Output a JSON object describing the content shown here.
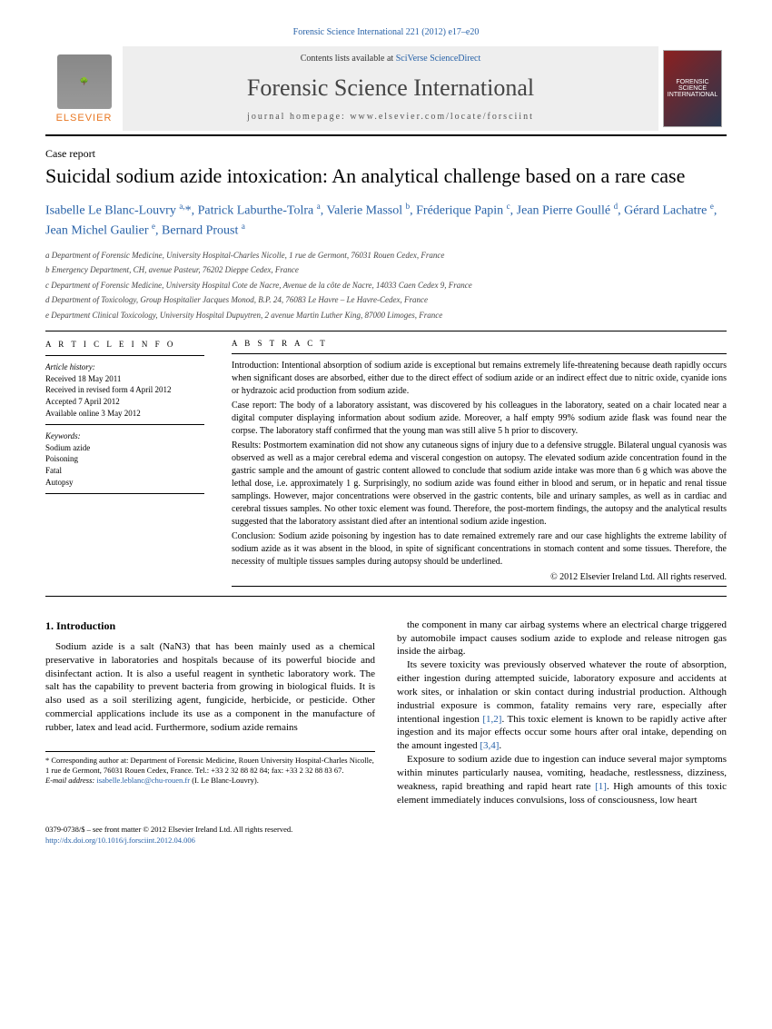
{
  "journal_ref": "Forensic Science International 221 (2012) e17–e20",
  "header": {
    "publisher": "ELSEVIER",
    "contents_pre": "Contents lists available at ",
    "contents_link1": "SciVerse ",
    "contents_link2": "ScienceDirect",
    "journal_name": "Forensic Science International",
    "homepage_label": "journal homepage: www.elsevier.com/locate/forsciint",
    "cover_text": "FORENSIC SCIENCE INTERNATIONAL"
  },
  "category": "Case report",
  "title": "Suicidal sodium azide intoxication: An analytical challenge based on a rare case",
  "authors_html": "Isabelle Le Blanc-Louvry <sup>a,</sup>*, Patrick Laburthe-Tolra <sup>a</sup>, Valerie Massol <sup>b</sup>, Fréderique Papin <sup>c</sup>, Jean Pierre Goullé <sup>d</sup>, Gérard Lachatre <sup>e</sup>, Jean Michel Gaulier <sup>e</sup>, Bernard Proust <sup>a</sup>",
  "affiliations": [
    "a Department of Forensic Medicine, University Hospital-Charles Nicolle, 1 rue de Germont, 76031 Rouen Cedex, France",
    "b Emergency Department, CH, avenue Pasteur, 76202 Dieppe Cedex, France",
    "c Department of Forensic Medicine, University Hospital Cote de Nacre, Avenue de la côte de Nacre, 14033 Caen Cedex 9, France",
    "d Department of Toxicology, Group Hospitalier Jacques Monod, B.P. 24, 76083 Le Havre – Le Havre-Cedex, France",
    "e Department Clinical Toxicology, University Hospital Dupuytren, 2 avenue Martin Luther King, 87000 Limoges, France"
  ],
  "article_info": {
    "heading": "A R T I C L E   I N F O",
    "hist_label": "Article history:",
    "history": [
      "Received 18 May 2011",
      "Received in revised form 4 April 2012",
      "Accepted 7 April 2012",
      "Available online 3 May 2012"
    ],
    "kw_label": "Keywords:",
    "keywords": [
      "Sodium azide",
      "Poisoning",
      "Fatal",
      "Autopsy"
    ]
  },
  "abstract": {
    "heading": "A B S T R A C T",
    "intro": "Introduction: Intentional absorption of sodium azide is exceptional but remains extremely life-threatening because death rapidly occurs when significant doses are absorbed, either due to the direct effect of sodium azide or an indirect effect due to nitric oxide, cyanide ions or hydrazoic acid production from sodium azide.",
    "case": "Case report: The body of a laboratory assistant, was discovered by his colleagues in the laboratory, seated on a chair located near a digital computer displaying information about sodium azide. Moreover, a half empty 99% sodium azide flask was found near the corpse. The laboratory staff confirmed that the young man was still alive 5 h prior to discovery.",
    "results": "Results: Postmortem examination did not show any cutaneous signs of injury due to a defensive struggle. Bilateral ungual cyanosis was observed as well as a major cerebral edema and visceral congestion on autopsy. The elevated sodium azide concentration found in the gastric sample and the amount of gastric content allowed to conclude that sodium azide intake was more than 6 g which was above the lethal dose, i.e. approximately 1 g. Surprisingly, no sodium azide was found either in blood and serum, or in hepatic and renal tissue samplings. However, major concentrations were observed in the gastric contents, bile and urinary samples, as well as in cardiac and cerebral tissues samples. No other toxic element was found. Therefore, the post-mortem findings, the autopsy and the analytical results suggested that the laboratory assistant died after an intentional sodium azide ingestion.",
    "conclusion": "Conclusion: Sodium azide poisoning by ingestion has to date remained extremely rare and our case highlights the extreme lability of sodium azide as it was absent in the blood, in spite of significant concentrations in stomach content and some tissues. Therefore, the necessity of multiple tissues samples during autopsy should be underlined.",
    "copyright": "© 2012 Elsevier Ireland Ltd. All rights reserved."
  },
  "body": {
    "section_title": "1. Introduction",
    "p1": "Sodium azide is a salt (NaN3) that has been mainly used as a chemical preservative in laboratories and hospitals because of its powerful biocide and disinfectant action. It is also a useful reagent in synthetic laboratory work. The salt has the capability to prevent bacteria from growing in biological fluids. It is also used as a soil sterilizing agent, fungicide, herbicide, or pesticide. Other commercial applications include its use as a component in the manufacture of rubber, latex and lead acid. Furthermore, sodium azide remains",
    "p2": "the component in many car airbag systems where an electrical charge triggered by automobile impact causes sodium azide to explode and release nitrogen gas inside the airbag.",
    "p3_a": "Its severe toxicity was previously observed whatever the route of absorption, either ingestion during attempted suicide, laboratory exposure and accidents at work sites, or inhalation or skin contact during industrial production. Although industrial exposure is common, fatality remains very rare, especially after intentional ingestion ",
    "p3_ref1": "[1,2]",
    "p3_b": ". This toxic element is known to be rapidly active after ingestion and its major effects occur some hours after oral intake, depending on the amount ingested ",
    "p3_ref2": "[3,4]",
    "p3_c": ".",
    "p4_a": "Exposure to sodium azide due to ingestion can induce several major symptoms within minutes particularly nausea, vomiting, headache, restlessness, dizziness, weakness, rapid breathing and rapid heart rate ",
    "p4_ref": "[1]",
    "p4_b": ". High amounts of this toxic element immediately induces convulsions, loss of consciousness, low heart"
  },
  "corresponding": {
    "text": "* Corresponding author at: Department of Forensic Medicine, Rouen University Hospital-Charles Nicolle, 1 rue de Germont, 76031 Rouen Cedex, France. Tel.: +33 2 32 88 82 84; fax: +33 2 32 88 83 67.",
    "email_label": "E-mail address: ",
    "email": "isabelle.leblanc@chu-rouen.fr",
    "email_tail": " (I. Le Blanc-Louvry)."
  },
  "footer": {
    "line1": "0379-0738/$ – see front matter © 2012 Elsevier Ireland Ltd. All rights reserved.",
    "doi": "http://dx.doi.org/10.1016/j.forsciint.2012.04.006"
  }
}
